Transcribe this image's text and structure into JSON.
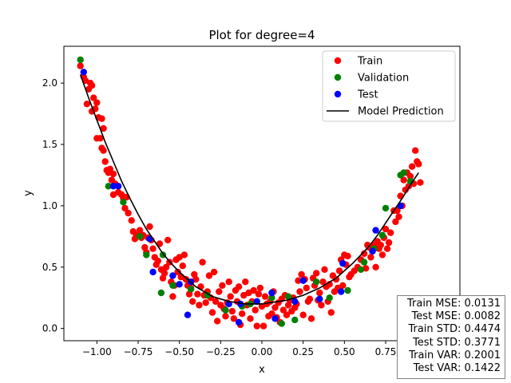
{
  "chart_data": {
    "type": "scatter",
    "title": "Plot for degree=4",
    "xlabel": "x",
    "ylabel": "y",
    "xlim": [
      -1.2,
      1.2
    ],
    "ylim": [
      -0.1,
      2.3
    ],
    "xticks": [
      -1.0,
      -0.75,
      -0.5,
      -0.25,
      0.0,
      0.25,
      0.5,
      0.75,
      1.0
    ],
    "xtick_labels": [
      "−1.00",
      "−0.75",
      "−0.50",
      "−0.25",
      "0.00",
      "0.25",
      "0.50",
      "0.75",
      "1.00"
    ],
    "yticks": [
      0.0,
      0.5,
      1.0,
      1.5,
      2.0
    ],
    "ytick_labels": [
      "0.0",
      "0.5",
      "1.0",
      "1.5",
      "2.0"
    ],
    "legend_position": "top-right",
    "grid": false,
    "series": [
      {
        "name": "Train",
        "kind": "scatter",
        "color": "#ff0000",
        "points": [
          [
            -1.1,
            2.14
          ],
          [
            -1.08,
            2.05
          ],
          [
            -1.07,
            2.02
          ],
          [
            -1.05,
            1.95
          ],
          [
            -1.04,
            2.0
          ],
          [
            -1.06,
            1.83
          ],
          [
            -1.03,
            1.98
          ],
          [
            -1.02,
            1.88
          ],
          [
            -1.01,
            1.79
          ],
          [
            -1.03,
            1.77
          ],
          [
            -1.0,
            1.84
          ],
          [
            -0.99,
            1.72
          ],
          [
            -0.97,
            1.71
          ],
          [
            -0.96,
            1.63
          ],
          [
            -1.0,
            1.55
          ],
          [
            -0.98,
            1.55
          ],
          [
            -0.97,
            1.47
          ],
          [
            -0.96,
            1.45
          ],
          [
            -0.95,
            1.36
          ],
          [
            -0.94,
            1.29
          ],
          [
            -0.93,
            1.27
          ],
          [
            -0.92,
            1.3
          ],
          [
            -0.91,
            1.21
          ],
          [
            -0.9,
            1.26
          ],
          [
            -0.89,
            1.18
          ],
          [
            -0.9,
            1.09
          ],
          [
            -0.87,
            1.11
          ],
          [
            -0.85,
            1.09
          ],
          [
            -0.84,
            1.06
          ],
          [
            -0.82,
            1.07
          ],
          [
            -0.83,
            0.98
          ],
          [
            -0.81,
            0.94
          ],
          [
            -0.79,
            0.88
          ],
          [
            -0.78,
            0.79
          ],
          [
            -0.77,
            0.73
          ],
          [
            -0.76,
            0.76
          ],
          [
            -0.74,
            0.8
          ],
          [
            -0.73,
            0.74
          ],
          [
            -0.72,
            0.76
          ],
          [
            -0.71,
            0.66
          ],
          [
            -0.7,
            0.62
          ],
          [
            -0.69,
            0.74
          ],
          [
            -0.68,
            0.83
          ],
          [
            -0.67,
            0.72
          ],
          [
            -0.66,
            0.65
          ],
          [
            -0.65,
            0.58
          ],
          [
            -0.64,
            0.52
          ],
          [
            -0.63,
            0.55
          ],
          [
            -0.62,
            0.69
          ],
          [
            -0.61,
            0.48
          ],
          [
            -0.6,
            0.41
          ],
          [
            -0.59,
            0.45
          ],
          [
            -0.58,
            0.5
          ],
          [
            -0.57,
            0.72
          ],
          [
            -0.56,
            0.54
          ],
          [
            -0.55,
            0.38
          ],
          [
            -0.54,
            0.26
          ],
          [
            -0.53,
            0.35
          ],
          [
            -0.52,
            0.56
          ],
          [
            -0.51,
            0.46
          ],
          [
            -0.5,
            0.58
          ],
          [
            -0.49,
            0.42
          ],
          [
            -0.48,
            0.51
          ],
          [
            -0.47,
            0.6
          ],
          [
            -0.46,
            0.4
          ],
          [
            -0.45,
            0.35
          ],
          [
            -0.44,
            0.28
          ],
          [
            -0.43,
            0.33
          ],
          [
            -0.42,
            0.22
          ],
          [
            -0.41,
            0.44
          ],
          [
            -0.4,
            0.4
          ],
          [
            -0.39,
            0.28
          ],
          [
            -0.38,
            0.19
          ],
          [
            -0.37,
            0.34
          ],
          [
            -0.36,
            0.54
          ],
          [
            -0.35,
            0.27
          ],
          [
            -0.34,
            0.21
          ],
          [
            -0.33,
            0.3
          ],
          [
            -0.32,
            0.43
          ],
          [
            -0.31,
            0.25
          ],
          [
            -0.3,
            0.13
          ],
          [
            -0.29,
            0.46
          ],
          [
            -0.28,
            0.22
          ],
          [
            -0.27,
            0.06
          ],
          [
            -0.26,
            0.3
          ],
          [
            -0.25,
            0.19
          ],
          [
            -0.24,
            0.35
          ],
          [
            -0.23,
            0.16
          ],
          [
            -0.22,
            0.1
          ],
          [
            -0.21,
            0.21
          ],
          [
            -0.2,
            0.38
          ],
          [
            -0.19,
            0.26
          ],
          [
            -0.18,
            0.14
          ],
          [
            -0.17,
            0.08
          ],
          [
            -0.16,
            0.31
          ],
          [
            -0.15,
            0.22
          ],
          [
            -0.14,
            0.34
          ],
          [
            -0.13,
            0.03
          ],
          [
            -0.12,
            0.12
          ],
          [
            -0.11,
            0.27
          ],
          [
            -0.1,
            0.38
          ],
          [
            -0.09,
            0.19
          ],
          [
            -0.08,
            0.29
          ],
          [
            -0.07,
            0.08
          ],
          [
            -0.06,
            0.22
          ],
          [
            -0.05,
            0.31
          ],
          [
            -0.04,
            0.15
          ],
          [
            -0.03,
            0.02
          ],
          [
            -0.02,
            0.28
          ],
          [
            -0.01,
            0.33
          ],
          [
            0.0,
            0.18
          ],
          [
            0.01,
            0.02
          ],
          [
            0.02,
            0.26
          ],
          [
            0.03,
            0.2
          ],
          [
            0.04,
            0.1
          ],
          [
            0.05,
            0.22
          ],
          [
            0.06,
            0.12
          ],
          [
            0.07,
            0.3
          ],
          [
            0.08,
            0.17
          ],
          [
            0.09,
            0.09
          ],
          [
            0.1,
            0.21
          ],
          [
            0.11,
            0.05
          ],
          [
            0.12,
            0.24
          ],
          [
            0.13,
            0.15
          ],
          [
            0.14,
            0.27
          ],
          [
            0.15,
            0.11
          ],
          [
            0.16,
            0.19
          ],
          [
            0.17,
            0.23
          ],
          [
            0.18,
            0.14
          ],
          [
            0.19,
            0.25
          ],
          [
            0.2,
            0.17
          ],
          [
            0.21,
            0.2
          ],
          [
            0.22,
            0.39
          ],
          [
            0.23,
            0.3
          ],
          [
            0.24,
            0.44
          ],
          [
            0.25,
            0.11
          ],
          [
            0.26,
            0.4
          ],
          [
            0.27,
            0.33
          ],
          [
            0.28,
            0.22
          ],
          [
            0.29,
            0.24
          ],
          [
            0.3,
            0.08
          ],
          [
            0.31,
            0.41
          ],
          [
            0.32,
            0.35
          ],
          [
            0.33,
            0.45
          ],
          [
            0.34,
            0.23
          ],
          [
            0.35,
            0.29
          ],
          [
            0.36,
            0.19
          ],
          [
            0.37,
            0.38
          ],
          [
            0.38,
            0.48
          ],
          [
            0.39,
            0.34
          ],
          [
            0.4,
            0.22
          ],
          [
            0.41,
            0.36
          ],
          [
            0.42,
            0.13
          ],
          [
            0.43,
            0.43
          ],
          [
            0.44,
            0.3
          ],
          [
            0.45,
            0.4
          ],
          [
            0.46,
            0.33
          ],
          [
            0.47,
            0.47
          ],
          [
            0.48,
            0.56
          ],
          [
            0.49,
            0.35
          ],
          [
            0.5,
            0.6
          ],
          [
            0.51,
            0.52
          ],
          [
            0.52,
            0.59
          ],
          [
            0.53,
            0.42
          ],
          [
            0.54,
            0.44
          ],
          [
            0.56,
            0.47
          ],
          [
            0.58,
            0.5
          ],
          [
            0.6,
            0.56
          ],
          [
            0.62,
            0.61
          ],
          [
            0.63,
            0.49
          ],
          [
            0.64,
            0.68
          ],
          [
            0.65,
            0.66
          ],
          [
            0.66,
            0.58
          ],
          [
            0.67,
            0.63
          ],
          [
            0.68,
            0.68
          ],
          [
            0.69,
            0.5
          ],
          [
            0.7,
            0.71
          ],
          [
            0.71,
            0.65
          ],
          [
            0.72,
            0.68
          ],
          [
            0.73,
            0.6
          ],
          [
            0.74,
            0.74
          ],
          [
            0.75,
            0.81
          ],
          [
            0.76,
            0.65
          ],
          [
            0.77,
            0.7
          ],
          [
            0.78,
            0.78
          ],
          [
            0.8,
            0.96
          ],
          [
            0.81,
            0.87
          ],
          [
            0.82,
            0.96
          ],
          [
            0.83,
            0.91
          ],
          [
            0.84,
            1.08
          ],
          [
            0.85,
            1.0
          ],
          [
            0.86,
            1.21
          ],
          [
            0.87,
            1.13
          ],
          [
            0.88,
            1.27
          ],
          [
            0.89,
            1.16
          ],
          [
            0.9,
            1.24
          ],
          [
            0.91,
            1.32
          ],
          [
            0.92,
            1.18
          ],
          [
            0.93,
            1.45
          ],
          [
            0.94,
            1.36
          ],
          [
            0.95,
            1.34
          ],
          [
            0.96,
            1.19
          ]
        ]
      },
      {
        "name": "Validation",
        "kind": "scatter",
        "color": "#008000",
        "points": [
          [
            -1.1,
            2.19
          ],
          [
            -0.93,
            1.16
          ],
          [
            -0.84,
            1.03
          ],
          [
            -0.74,
            0.75
          ],
          [
            -0.7,
            0.6
          ],
          [
            -0.61,
            0.29
          ],
          [
            -0.6,
            0.6
          ],
          [
            -0.54,
            0.35
          ],
          [
            -0.43,
            0.32
          ],
          [
            -0.33,
            0.27
          ],
          [
            -0.22,
            0.15
          ],
          [
            -0.12,
            0.18
          ],
          [
            -0.07,
            0.2
          ],
          [
            0.06,
            0.25
          ],
          [
            0.12,
            0.04
          ],
          [
            0.16,
            0.26
          ],
          [
            0.2,
            0.07
          ],
          [
            0.33,
            0.38
          ],
          [
            0.41,
            0.25
          ],
          [
            0.52,
            0.31
          ],
          [
            0.6,
            0.48
          ],
          [
            0.62,
            0.54
          ],
          [
            0.68,
            0.65
          ],
          [
            0.73,
            0.76
          ],
          [
            0.75,
            0.98
          ],
          [
            0.84,
            1.25
          ],
          [
            0.86,
            1.27
          ],
          [
            0.9,
            1.2
          ]
        ]
      },
      {
        "name": "Test",
        "kind": "scatter",
        "color": "#0000ff",
        "points": [
          [
            -1.08,
            2.09
          ],
          [
            -0.9,
            1.16
          ],
          [
            -0.87,
            1.16
          ],
          [
            -0.68,
            0.73
          ],
          [
            -0.66,
            0.46
          ],
          [
            -0.54,
            0.43
          ],
          [
            -0.5,
            0.36
          ],
          [
            -0.45,
            0.11
          ],
          [
            -0.43,
            0.38
          ],
          [
            -0.2,
            0.2
          ],
          [
            -0.14,
            0.05
          ],
          [
            -0.13,
            0.2
          ],
          [
            -0.03,
            0.22
          ],
          [
            0.06,
            0.29
          ],
          [
            0.08,
            0.08
          ],
          [
            0.2,
            0.22
          ],
          [
            0.25,
            0.39
          ],
          [
            0.35,
            0.24
          ],
          [
            0.48,
            0.3
          ],
          [
            0.49,
            0.53
          ],
          [
            0.67,
            0.63
          ],
          [
            0.69,
            0.8
          ],
          [
            0.84,
            1.0
          ]
        ]
      },
      {
        "name": "Model Prediction",
        "kind": "line",
        "color": "#000000",
        "x": [
          -1.1,
          -1.05,
          -1.0,
          -0.95,
          -0.9,
          -0.85,
          -0.8,
          -0.75,
          -0.7,
          -0.65,
          -0.6,
          -0.55,
          -0.5,
          -0.45,
          -0.4,
          -0.35,
          -0.3,
          -0.25,
          -0.2,
          -0.15,
          -0.1,
          -0.05,
          0.0,
          0.05,
          0.1,
          0.15,
          0.2,
          0.25,
          0.3,
          0.35,
          0.4,
          0.45,
          0.5,
          0.55,
          0.6,
          0.65,
          0.7,
          0.75,
          0.8,
          0.85,
          0.9,
          0.95
        ],
        "y": [
          2.07,
          1.88,
          1.7,
          1.52,
          1.36,
          1.2,
          1.06,
          0.93,
          0.81,
          0.71,
          0.61,
          0.53,
          0.46,
          0.4,
          0.34,
          0.3,
          0.26,
          0.24,
          0.22,
          0.21,
          0.2,
          0.2,
          0.2,
          0.21,
          0.22,
          0.23,
          0.25,
          0.27,
          0.3,
          0.33,
          0.37,
          0.41,
          0.47,
          0.53,
          0.6,
          0.67,
          0.76,
          0.86,
          0.96,
          1.06,
          1.17,
          1.27
        ]
      }
    ]
  },
  "stats": [
    "Train MSE: 0.0131",
    "Test MSE: 0.0082",
    "Train STD: 0.4474",
    "Test STD: 0.3771",
    "Train VAR: 0.2001",
    "Test VAR: 0.1422"
  ]
}
